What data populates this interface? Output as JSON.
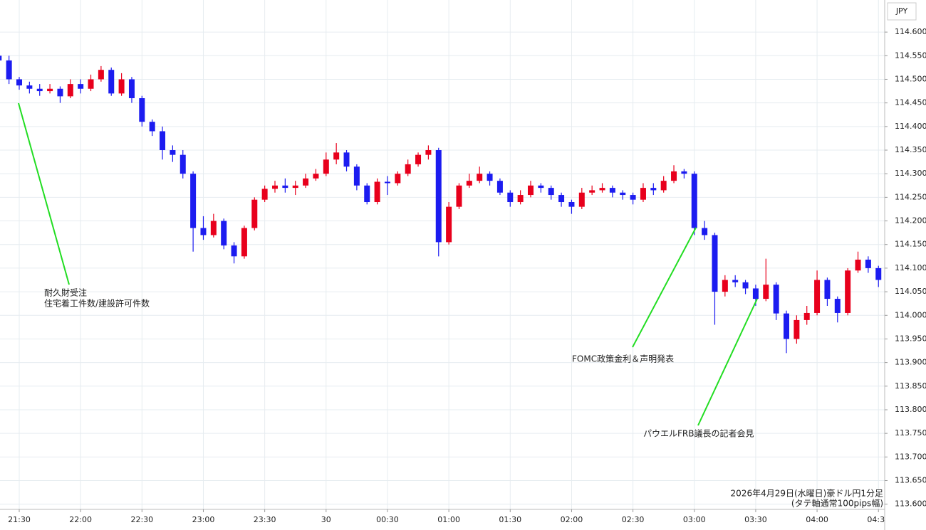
{
  "chart_data": {
    "type": "candlestick",
    "currency_label": "JPY",
    "x": [
      "21:20",
      "21:25",
      "21:30",
      "21:35",
      "21:40",
      "21:45",
      "21:50",
      "21:55",
      "22:00",
      "22:05",
      "22:10",
      "22:15",
      "22:20",
      "22:25",
      "22:30",
      "22:35",
      "22:40",
      "22:45",
      "22:50",
      "22:55",
      "23:00",
      "23:05",
      "23:10",
      "23:15",
      "23:20",
      "23:25",
      "23:30",
      "23:35",
      "23:40",
      "23:45",
      "23:50",
      "23:55",
      "00:00",
      "00:05",
      "00:10",
      "00:15",
      "00:20",
      "00:25",
      "00:30",
      "00:35",
      "00:40",
      "00:45",
      "00:50",
      "00:55",
      "01:00",
      "01:05",
      "01:10",
      "01:15",
      "01:20",
      "01:25",
      "01:30",
      "01:35",
      "01:40",
      "01:45",
      "01:50",
      "01:55",
      "02:00",
      "02:05",
      "02:10",
      "02:15",
      "02:20",
      "02:25",
      "02:30",
      "02:35",
      "02:40",
      "02:45",
      "02:50",
      "02:55",
      "03:00",
      "03:05",
      "03:10",
      "03:15",
      "03:20",
      "03:25",
      "03:30",
      "03:35",
      "03:40",
      "03:45",
      "03:50",
      "03:55",
      "04:00",
      "04:05",
      "04:10",
      "04:15",
      "04:20",
      "04:25",
      "04:30"
    ],
    "open": [
      114.55,
      114.54,
      114.5,
      114.487,
      114.48,
      114.475,
      114.48,
      114.464,
      114.49,
      114.48,
      114.5,
      114.52,
      114.47,
      114.5,
      114.46,
      114.41,
      114.39,
      114.35,
      114.34,
      114.3,
      114.185,
      114.17,
      114.2,
      114.148,
      114.125,
      114.185,
      114.245,
      114.268,
      114.275,
      114.27,
      114.275,
      114.29,
      114.3,
      114.33,
      114.345,
      114.315,
      114.275,
      114.24,
      114.283,
      114.28,
      114.3,
      114.32,
      114.34,
      114.35,
      114.155,
      114.23,
      114.275,
      114.285,
      114.3,
      114.285,
      114.26,
      114.24,
      114.255,
      114.275,
      114.27,
      114.255,
      114.24,
      114.23,
      114.26,
      114.265,
      114.27,
      114.26,
      114.255,
      114.245,
      114.27,
      114.265,
      114.285,
      114.305,
      114.3,
      114.185,
      114.17,
      114.05,
      114.075,
      114.07,
      114.057,
      114.035,
      114.065,
      114.004,
      113.95,
      113.99,
      114.005,
      114.075,
      114.035,
      114.005,
      114.095,
      114.118,
      114.1
    ],
    "high": [
      114.56,
      114.55,
      114.505,
      114.495,
      114.49,
      114.49,
      114.485,
      114.5,
      114.5,
      114.51,
      114.528,
      114.525,
      114.513,
      114.505,
      114.465,
      114.415,
      114.4,
      114.36,
      114.35,
      114.305,
      114.21,
      114.215,
      114.205,
      114.155,
      114.19,
      114.25,
      114.275,
      114.285,
      114.29,
      114.285,
      114.3,
      114.31,
      114.345,
      114.365,
      114.35,
      114.32,
      114.28,
      114.29,
      114.295,
      114.305,
      114.33,
      114.345,
      114.36,
      114.355,
      114.24,
      114.28,
      114.3,
      114.315,
      114.305,
      114.29,
      114.265,
      114.265,
      114.285,
      114.28,
      114.275,
      114.26,
      114.245,
      114.27,
      114.275,
      114.28,
      114.275,
      114.265,
      114.26,
      114.28,
      114.28,
      114.295,
      114.318,
      114.31,
      114.305,
      114.2,
      114.175,
      114.085,
      114.085,
      114.075,
      114.065,
      114.12,
      114.07,
      114.01,
      114.0,
      114.02,
      114.095,
      114.08,
      114.04,
      114.1,
      114.135,
      114.125,
      114.105
    ],
    "low": [
      114.53,
      114.49,
      114.478,
      114.47,
      114.465,
      114.47,
      114.45,
      114.46,
      114.47,
      114.475,
      114.495,
      114.465,
      114.465,
      114.45,
      114.4,
      114.38,
      114.33,
      114.325,
      114.29,
      114.135,
      114.16,
      114.165,
      114.14,
      114.11,
      114.12,
      114.18,
      114.24,
      114.26,
      114.26,
      114.255,
      114.27,
      114.285,
      114.295,
      114.32,
      114.305,
      114.265,
      114.235,
      114.235,
      114.255,
      114.275,
      114.295,
      114.315,
      114.33,
      114.125,
      114.15,
      114.225,
      114.27,
      114.28,
      114.275,
      114.255,
      114.23,
      114.235,
      114.25,
      114.26,
      114.245,
      114.23,
      114.215,
      114.225,
      114.255,
      114.26,
      114.25,
      114.245,
      114.235,
      114.24,
      114.255,
      114.26,
      114.28,
      114.29,
      114.17,
      114.16,
      113.98,
      114.04,
      114.06,
      114.045,
      114.02,
      114.03,
      113.99,
      113.92,
      113.94,
      113.98,
      114.0,
      114.02,
      113.985,
      114.0,
      114.09,
      114.09,
      114.06
    ],
    "close": [
      114.54,
      114.5,
      114.487,
      114.48,
      114.475,
      114.48,
      114.464,
      114.49,
      114.48,
      114.5,
      114.52,
      114.47,
      114.5,
      114.46,
      114.41,
      114.39,
      114.35,
      114.34,
      114.3,
      114.185,
      114.17,
      114.2,
      114.148,
      114.125,
      114.185,
      114.245,
      114.268,
      114.275,
      114.27,
      114.275,
      114.29,
      114.3,
      114.33,
      114.345,
      114.315,
      114.275,
      114.24,
      114.283,
      114.28,
      114.3,
      114.32,
      114.34,
      114.35,
      114.155,
      114.23,
      114.275,
      114.285,
      114.3,
      114.285,
      114.26,
      114.24,
      114.255,
      114.275,
      114.27,
      114.255,
      114.24,
      114.23,
      114.26,
      114.265,
      114.27,
      114.26,
      114.255,
      114.245,
      114.27,
      114.265,
      114.285,
      114.305,
      114.3,
      114.185,
      114.17,
      114.05,
      114.075,
      114.07,
      114.057,
      114.035,
      114.065,
      114.004,
      113.95,
      113.99,
      114.005,
      114.075,
      114.035,
      114.005,
      114.095,
      114.118,
      114.1,
      114.075
    ],
    "up_color": "#e8001c",
    "down_color": "#1c1cf0",
    "xticks": [
      "21:30",
      "22:00",
      "22:30",
      "23:00",
      "23:30",
      {
        "value": "00:00",
        "label": "30"
      },
      "00:30",
      "01:00",
      "01:30",
      "02:00",
      "02:30",
      "03:00",
      "03:30",
      "04:00",
      "04:30"
    ],
    "ylim": [
      113.589,
      114.668
    ],
    "yticks": [
      {
        "value": 113.6,
        "label": "113.600"
      },
      {
        "value": 113.65,
        "label": "113.650"
      },
      {
        "value": 113.7,
        "label": "113.700"
      },
      {
        "value": 113.75,
        "label": "113.750"
      },
      {
        "value": 113.8,
        "label": "113.800"
      },
      {
        "value": 113.85,
        "label": "113.850"
      },
      {
        "value": 113.9,
        "label": "113.900"
      },
      {
        "value": 113.95,
        "label": "113.950"
      },
      {
        "value": 114.0,
        "label": "114.000"
      },
      {
        "value": 114.05,
        "label": "114.050"
      },
      {
        "value": 114.1,
        "label": "114.100"
      },
      {
        "value": 114.15,
        "label": "114.150"
      },
      {
        "value": 114.2,
        "label": "114.200"
      },
      {
        "value": 114.25,
        "label": "114.250"
      },
      {
        "value": 114.3,
        "label": "114.300"
      },
      {
        "value": 114.35,
        "label": "114.350"
      },
      {
        "value": 114.4,
        "label": "114.400"
      },
      {
        "value": 114.45,
        "label": "114.450"
      },
      {
        "value": 114.5,
        "label": "114.500"
      },
      {
        "value": 114.55,
        "label": "114.550"
      },
      {
        "value": 114.6,
        "label": "114.600"
      }
    ],
    "grid": true,
    "annotations": [
      {
        "lines": [
          "耐久財受注",
          "住宅着工件数/建設許可件数"
        ]
      },
      {
        "lines": [
          "FOMC政策金利＆声明発表"
        ]
      },
      {
        "lines": [
          "パウエルFRB議長の記者会見"
        ]
      }
    ],
    "footnote": [
      "2026年4月29日(水曜日)豪ドル円1分足",
      "(タテ軸通常100pips幅)"
    ]
  }
}
